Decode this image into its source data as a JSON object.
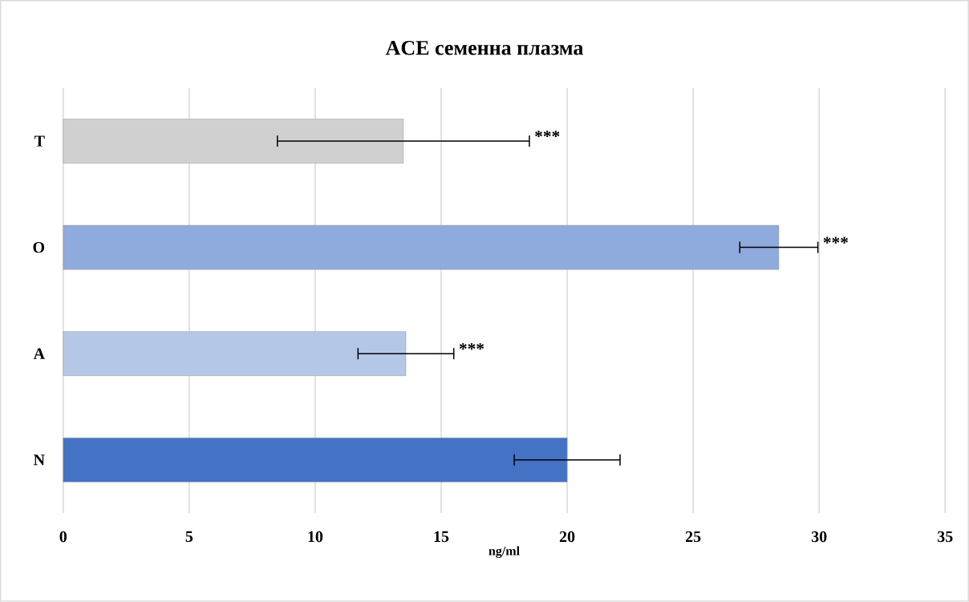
{
  "chart_data": {
    "type": "bar",
    "orientation": "horizontal",
    "title": "ACE семенна плазма",
    "xlabel": "ng/ml",
    "categories": [
      "T",
      "O",
      "A",
      "N"
    ],
    "values": [
      13.5,
      28.4,
      13.6,
      20.0
    ],
    "errors": [
      5.0,
      1.55,
      1.9,
      2.1
    ],
    "colors": [
      "#d0d0d0",
      "#8faadc",
      "#b4c7e7",
      "#4472c4"
    ],
    "xlim": [
      0,
      35
    ],
    "xticks": [
      0,
      5,
      10,
      15,
      20,
      25,
      30,
      35
    ],
    "grid": "x",
    "annotations": [
      "***",
      "***",
      "***"
    ]
  }
}
